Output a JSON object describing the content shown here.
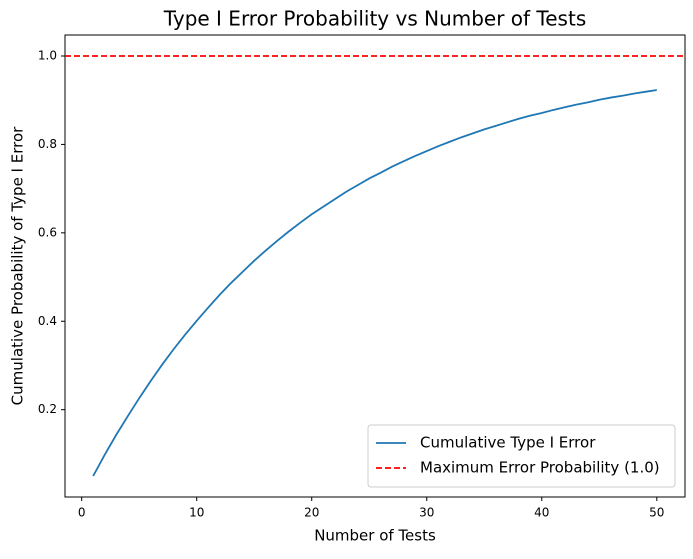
{
  "chart_data": {
    "type": "line",
    "title": "Type I Error Probability vs Number of Tests",
    "x_label": "Number of Tests",
    "y_label": "Cumulative Probability of Type I Error",
    "x": [
      1,
      2,
      3,
      4,
      5,
      6,
      7,
      8,
      9,
      10,
      11,
      12,
      13,
      14,
      15,
      16,
      17,
      18,
      19,
      20,
      21,
      22,
      23,
      24,
      25,
      26,
      27,
      28,
      29,
      30,
      31,
      32,
      33,
      34,
      35,
      36,
      37,
      38,
      39,
      40,
      41,
      42,
      43,
      44,
      45,
      46,
      47,
      48,
      49,
      50
    ],
    "series": [
      {
        "name": "Cumulative Type I Error",
        "color": "#1f77b4",
        "values": [
          0.05,
          0.098,
          0.143,
          0.185,
          0.226,
          0.265,
          0.302,
          0.337,
          0.37,
          0.401,
          0.431,
          0.46,
          0.487,
          0.512,
          0.537,
          0.56,
          0.582,
          0.603,
          0.623,
          0.642,
          0.659,
          0.676,
          0.693,
          0.708,
          0.723,
          0.736,
          0.75,
          0.762,
          0.774,
          0.785,
          0.796,
          0.806,
          0.816,
          0.825,
          0.834,
          0.842,
          0.85,
          0.858,
          0.865,
          0.871,
          0.878,
          0.884,
          0.89,
          0.895,
          0.901,
          0.906,
          0.91,
          0.915,
          0.919,
          0.923
        ]
      }
    ],
    "reference_line": {
      "name": "Maximum Error Probability (1.0)",
      "value": 1,
      "color": "#ff0000",
      "dashed": true
    },
    "xlim": [
      -1.45,
      52.45
    ],
    "ylim": [
      0.0025,
      1.0475
    ],
    "xticks": [
      0,
      10,
      20,
      30,
      40,
      50
    ],
    "yticks": [
      0.2,
      0.4,
      0.6,
      0.8,
      {
        "value": 1,
        "label": "1.0"
      }
    ],
    "grid": false,
    "legend": "lower right"
  }
}
